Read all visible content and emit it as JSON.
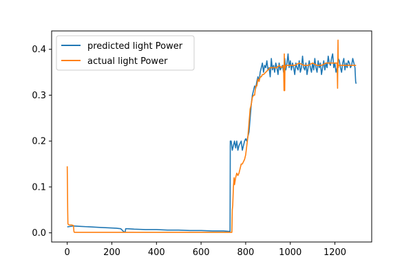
{
  "chart_data": {
    "type": "line",
    "title": "",
    "xlabel": "",
    "ylabel": "",
    "xlim": [
      -70,
      1365
    ],
    "ylim": [
      -0.02,
      0.44
    ],
    "xticks": [
      0,
      200,
      400,
      600,
      800,
      1000,
      1200
    ],
    "yticks": [
      0.0,
      0.1,
      0.2,
      0.3,
      0.4
    ],
    "legend": {
      "position": "upper-left"
    },
    "grid": false,
    "series": [
      {
        "name": "predicted light Power",
        "color": "#1f77b4",
        "x": [
          0,
          30,
          60,
          100,
          140,
          180,
          220,
          240,
          250,
          255,
          260,
          262,
          265,
          270,
          300,
          350,
          400,
          450,
          500,
          550,
          600,
          650,
          700,
          730,
          731,
          735,
          740,
          745,
          750,
          755,
          760,
          765,
          770,
          775,
          780,
          785,
          790,
          795,
          800,
          805,
          810,
          815,
          820,
          825,
          830,
          835,
          840,
          845,
          850,
          855,
          860,
          865,
          870,
          875,
          880,
          885,
          890,
          895,
          900,
          905,
          910,
          915,
          920,
          925,
          930,
          935,
          940,
          945,
          950,
          955,
          960,
          965,
          970,
          975,
          980,
          985,
          990,
          995,
          1000,
          1005,
          1010,
          1015,
          1020,
          1025,
          1030,
          1035,
          1040,
          1045,
          1050,
          1055,
          1060,
          1065,
          1070,
          1075,
          1080,
          1085,
          1090,
          1095,
          1100,
          1105,
          1110,
          1115,
          1120,
          1125,
          1130,
          1135,
          1140,
          1145,
          1150,
          1155,
          1160,
          1165,
          1170,
          1175,
          1180,
          1185,
          1190,
          1195,
          1200,
          1205,
          1210,
          1215,
          1220,
          1225,
          1230,
          1235,
          1240,
          1245,
          1250,
          1255,
          1260,
          1265,
          1270,
          1275,
          1280,
          1285,
          1290,
          1293,
          1295
        ],
        "y": [
          0.013,
          0.015,
          0.014,
          0.013,
          0.012,
          0.011,
          0.01,
          0.009,
          0.004,
          0.002,
          0.002,
          0.009,
          0.009,
          0.009,
          0.008,
          0.007,
          0.007,
          0.006,
          0.006,
          0.005,
          0.005,
          0.004,
          0.004,
          0.003,
          0.2,
          0.2,
          0.18,
          0.19,
          0.2,
          0.185,
          0.2,
          0.18,
          0.19,
          0.195,
          0.2,
          0.18,
          0.19,
          0.2,
          0.205,
          0.2,
          0.21,
          0.22,
          0.25,
          0.28,
          0.3,
          0.31,
          0.32,
          0.315,
          0.33,
          0.34,
          0.33,
          0.35,
          0.36,
          0.37,
          0.35,
          0.365,
          0.36,
          0.375,
          0.355,
          0.36,
          0.34,
          0.38,
          0.355,
          0.365,
          0.35,
          0.37,
          0.36,
          0.345,
          0.37,
          0.355,
          0.36,
          0.365,
          0.35,
          0.38,
          0.355,
          0.37,
          0.39,
          0.36,
          0.375,
          0.355,
          0.37,
          0.36,
          0.345,
          0.37,
          0.36,
          0.355,
          0.375,
          0.35,
          0.36,
          0.385,
          0.36,
          0.355,
          0.37,
          0.345,
          0.36,
          0.375,
          0.36,
          0.35,
          0.37,
          0.355,
          0.38,
          0.36,
          0.35,
          0.375,
          0.36,
          0.37,
          0.345,
          0.36,
          0.375,
          0.355,
          0.37,
          0.36,
          0.385,
          0.37,
          0.365,
          0.38,
          0.39,
          0.36,
          0.37,
          0.35,
          0.36,
          0.38,
          0.375,
          0.36,
          0.35,
          0.37,
          0.38,
          0.355,
          0.37,
          0.36,
          0.375,
          0.37,
          0.36,
          0.365,
          0.38,
          0.37,
          0.36,
          0.33,
          0.325
        ]
      },
      {
        "name": "actual light Power",
        "color": "#ff7f0e",
        "x": [
          0,
          1,
          2,
          3,
          5,
          10,
          20,
          28,
          30,
          32,
          100,
          200,
          300,
          400,
          500,
          600,
          700,
          735,
          738,
          740,
          742,
          745,
          748,
          750,
          755,
          760,
          765,
          770,
          775,
          780,
          785,
          790,
          795,
          800,
          805,
          810,
          815,
          820,
          825,
          830,
          835,
          840,
          845,
          850,
          855,
          860,
          865,
          870,
          875,
          880,
          890,
          900,
          910,
          920,
          930,
          940,
          950,
          960,
          970,
          972,
          973,
          974,
          975,
          976,
          978,
          980,
          990,
          1000,
          1010,
          1020,
          1040,
          1060,
          1080,
          1100,
          1120,
          1140,
          1160,
          1180,
          1200,
          1210,
          1212,
          1214,
          1215,
          1216,
          1218,
          1220,
          1225,
          1240,
          1260,
          1280,
          1295
        ],
        "y": [
          0.145,
          0.1,
          0.05,
          0.02,
          0.018,
          0.017,
          0.017,
          0.016,
          0.003,
          0.001,
          0.001,
          0.001,
          0.001,
          0.001,
          0.001,
          0.001,
          0.001,
          0.001,
          0.001,
          0.05,
          0.06,
          0.1,
          0.12,
          0.105,
          0.12,
          0.13,
          0.125,
          0.13,
          0.14,
          0.15,
          0.15,
          0.155,
          0.16,
          0.17,
          0.19,
          0.21,
          0.24,
          0.27,
          0.28,
          0.295,
          0.3,
          0.3,
          0.32,
          0.32,
          0.335,
          0.33,
          0.34,
          0.34,
          0.345,
          0.345,
          0.35,
          0.355,
          0.36,
          0.36,
          0.36,
          0.36,
          0.365,
          0.36,
          0.365,
          0.31,
          0.39,
          0.36,
          0.31,
          0.36,
          0.36,
          0.365,
          0.365,
          0.365,
          0.365,
          0.365,
          0.37,
          0.365,
          0.365,
          0.37,
          0.365,
          0.365,
          0.37,
          0.37,
          0.37,
          0.37,
          0.315,
          0.42,
          0.36,
          0.365,
          0.365,
          0.365,
          0.365,
          0.365,
          0.365,
          0.365,
          0.365
        ]
      }
    ]
  }
}
